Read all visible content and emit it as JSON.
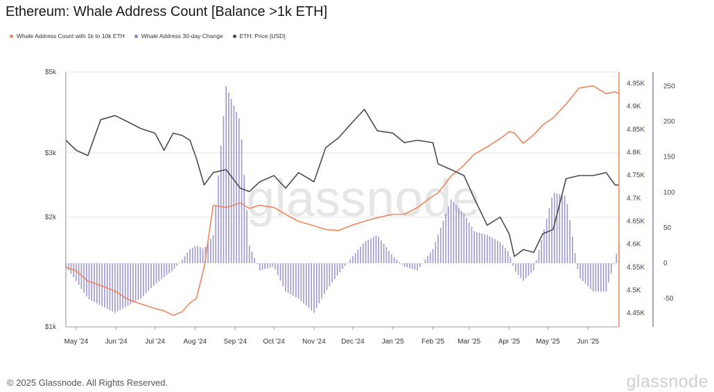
{
  "title": "Ethereum: Whale Address Count [Balance >1k ETH]",
  "footer": "© 2025 Glassnode. All Rights Reserved.",
  "wordmark": "glassnode",
  "watermark": "glassnode",
  "colors": {
    "count": "#f0845a",
    "change": "#8b84c9",
    "price": "#4a4a4a",
    "grid": "#e6e6e6"
  },
  "legend": [
    {
      "label": "Whale Address Count with 1k to 10k ETH",
      "color": "#f0845a"
    },
    {
      "label": "Whale Address 30-day Change",
      "color": "#8b84c9"
    },
    {
      "label": "ETH: Price [USD]",
      "color": "#4a4a4a"
    }
  ],
  "chart_data": {
    "type": "line",
    "x_start": "2024-04-23",
    "x_end": "2025-06-25",
    "x_ticks": [
      "May '24",
      "Jun '24",
      "Jul '24",
      "Aug '24",
      "Sep '24",
      "Oct '24",
      "Nov '24",
      "Dec '24",
      "Jan '25",
      "Feb '25",
      "Mar '25",
      "Apr '25",
      "May '25",
      "Jun '25"
    ],
    "axes": {
      "price": {
        "side": "left",
        "scale": "log",
        "range": [
          1000,
          5000
        ],
        "ticks": [
          {
            "value": 5000,
            "label": "$5k"
          },
          {
            "value": 3000,
            "label": "$3k"
          },
          {
            "value": 2000,
            "label": "$2k"
          },
          {
            "value": 1000,
            "label": "$1k"
          }
        ]
      },
      "count": {
        "side": "right-inner",
        "range": [
          4420,
          4975
        ],
        "ticks": [
          {
            "value": 4950,
            "label": "4.95K"
          },
          {
            "value": 4900,
            "label": "4.9K"
          },
          {
            "value": 4850,
            "label": "4.85K"
          },
          {
            "value": 4800,
            "label": "4.8K"
          },
          {
            "value": 4750,
            "label": "4.75K"
          },
          {
            "value": 4700,
            "label": "4.7K"
          },
          {
            "value": 4650,
            "label": "4.65K"
          },
          {
            "value": 4600,
            "label": "4.6K"
          },
          {
            "value": 4550,
            "label": "4.55K"
          },
          {
            "value": 4500,
            "label": "4.5K"
          },
          {
            "value": 4450,
            "label": "4.45K"
          }
        ]
      },
      "change": {
        "side": "right-outer",
        "range": [
          -90,
          270
        ],
        "ticks": [
          {
            "value": 250,
            "label": "250"
          },
          {
            "value": 200,
            "label": "200"
          },
          {
            "value": 150,
            "label": "150"
          },
          {
            "value": 100,
            "label": "100"
          },
          {
            "value": 50,
            "label": "50"
          },
          {
            "value": 0,
            "label": "0"
          },
          {
            "value": -50,
            "label": "-50"
          }
        ]
      }
    },
    "series": [
      {
        "name": "Whale Address Count with 1k to 10k ETH",
        "axis": "count",
        "kind": "line",
        "color": "#f0845a",
        "x": [
          "2024-04-23",
          "2024-05-01",
          "2024-05-10",
          "2024-05-20",
          "2024-05-31",
          "2024-06-10",
          "2024-06-20",
          "2024-07-01",
          "2024-07-08",
          "2024-07-15",
          "2024-07-22",
          "2024-07-28",
          "2024-08-02",
          "2024-08-08",
          "2024-08-15",
          "2024-08-25",
          "2024-09-05",
          "2024-09-12",
          "2024-09-20",
          "2024-10-01",
          "2024-10-10",
          "2024-10-20",
          "2024-11-01",
          "2024-11-10",
          "2024-11-20",
          "2024-12-01",
          "2024-12-10",
          "2024-12-20",
          "2025-01-01",
          "2025-01-10",
          "2025-01-20",
          "2025-02-01",
          "2025-02-05",
          "2025-02-15",
          "2025-02-25",
          "2025-03-05",
          "2025-03-15",
          "2025-03-25",
          "2025-04-01",
          "2025-04-05",
          "2025-04-12",
          "2025-04-20",
          "2025-04-27",
          "2025-05-05",
          "2025-05-15",
          "2025-05-25",
          "2025-06-05",
          "2025-06-15",
          "2025-06-22",
          "2025-06-25"
        ],
        "y": [
          4550,
          4542,
          4520,
          4510,
          4498,
          4480,
          4470,
          4460,
          4455,
          4445,
          4453,
          4472,
          4482,
          4550,
          4685,
          4680,
          4690,
          4678,
          4685,
          4680,
          4665,
          4650,
          4640,
          4632,
          4630,
          4642,
          4650,
          4658,
          4665,
          4665,
          4680,
          4705,
          4712,
          4748,
          4772,
          4796,
          4812,
          4830,
          4845,
          4842,
          4820,
          4838,
          4860,
          4875,
          4905,
          4940,
          4945,
          4928,
          4932,
          4928
        ]
      },
      {
        "name": "Whale Address 30-day Change",
        "axis": "change",
        "kind": "bar",
        "color": "#8b84c9",
        "x": [
          "2024-04-23",
          "2024-05-01",
          "2024-05-10",
          "2024-05-20",
          "2024-05-31",
          "2024-06-10",
          "2024-06-20",
          "2024-07-01",
          "2024-07-08",
          "2024-07-15",
          "2024-07-22",
          "2024-07-28",
          "2024-08-02",
          "2024-08-08",
          "2024-08-15",
          "2024-08-25",
          "2024-09-05",
          "2024-09-12",
          "2024-09-20",
          "2024-10-01",
          "2024-10-10",
          "2024-10-20",
          "2024-11-01",
          "2024-11-10",
          "2024-11-20",
          "2024-12-01",
          "2024-12-10",
          "2024-12-20",
          "2025-01-01",
          "2025-01-10",
          "2025-01-20",
          "2025-02-01",
          "2025-02-05",
          "2025-02-15",
          "2025-02-25",
          "2025-03-05",
          "2025-03-15",
          "2025-03-25",
          "2025-04-01",
          "2025-04-05",
          "2025-04-12",
          "2025-04-20",
          "2025-04-27",
          "2025-05-05",
          "2025-05-15",
          "2025-05-25",
          "2025-06-05",
          "2025-06-15",
          "2025-06-22",
          "2025-06-25"
        ],
        "y": [
          -5,
          -25,
          -50,
          -60,
          -70,
          -60,
          -50,
          -30,
          -20,
          -10,
          5,
          20,
          25,
          20,
          40,
          250,
          200,
          25,
          -10,
          -5,
          -40,
          -50,
          -70,
          -40,
          -15,
          10,
          30,
          40,
          10,
          -5,
          -10,
          20,
          40,
          90,
          70,
          45,
          40,
          30,
          15,
          -10,
          -25,
          -10,
          40,
          100,
          95,
          -20,
          -40,
          -40,
          5,
          30
        ]
      },
      {
        "name": "ETH: Price [USD]",
        "axis": "price",
        "kind": "line",
        "color": "#4a4a4a",
        "x": [
          "2024-04-23",
          "2024-05-01",
          "2024-05-10",
          "2024-05-20",
          "2024-05-31",
          "2024-06-10",
          "2024-06-20",
          "2024-07-01",
          "2024-07-08",
          "2024-07-15",
          "2024-07-22",
          "2024-07-28",
          "2024-08-02",
          "2024-08-08",
          "2024-08-15",
          "2024-08-25",
          "2024-09-05",
          "2024-09-12",
          "2024-09-20",
          "2024-10-01",
          "2024-10-10",
          "2024-10-20",
          "2024-11-01",
          "2024-11-10",
          "2024-11-20",
          "2024-12-01",
          "2024-12-10",
          "2024-12-20",
          "2025-01-01",
          "2025-01-10",
          "2025-01-20",
          "2025-02-01",
          "2025-02-05",
          "2025-02-15",
          "2025-02-25",
          "2025-03-05",
          "2025-03-15",
          "2025-03-25",
          "2025-04-01",
          "2025-04-05",
          "2025-04-12",
          "2025-04-20",
          "2025-04-27",
          "2025-05-05",
          "2025-05-15",
          "2025-05-25",
          "2025-06-05",
          "2025-06-15",
          "2025-06-22",
          "2025-06-25"
        ],
        "y": [
          3250,
          3050,
          2950,
          3700,
          3800,
          3650,
          3500,
          3400,
          3050,
          3400,
          3350,
          3250,
          2900,
          2450,
          2650,
          2700,
          2400,
          2350,
          2500,
          2600,
          2400,
          2650,
          2500,
          3100,
          3300,
          3650,
          3950,
          3450,
          3400,
          3200,
          3250,
          3200,
          2800,
          2700,
          2600,
          2250,
          1900,
          2000,
          1800,
          1560,
          1630,
          1600,
          1800,
          1850,
          2550,
          2600,
          2600,
          2650,
          2450,
          2450
        ]
      }
    ],
    "legend_position": "top-left",
    "grid": true
  }
}
